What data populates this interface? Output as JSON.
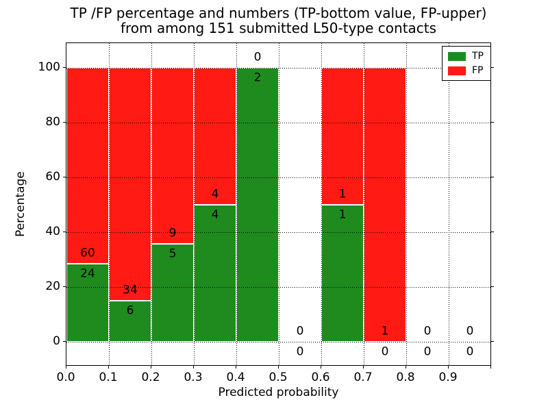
{
  "chart_data": {
    "type": "bar",
    "stacked": true,
    "title_line1": "TP /FP percentage and numbers (TP-bottom value, FP-upper)",
    "title_line2": "from among 151 submitted L50-type contacts",
    "xlabel": "Predicted probability",
    "ylabel": "Percentage",
    "xlim": [
      0.0,
      1.0
    ],
    "ylim": [
      -9,
      109
    ],
    "x_tick_labels": [
      "0.0",
      "0.1",
      "0.2",
      "0.3",
      "0.4",
      "0.5",
      "0.6",
      "0.7",
      "0.8",
      "0.9"
    ],
    "y_ticks": [
      0,
      20,
      40,
      60,
      80,
      100
    ],
    "grid": true,
    "legend_position": "upper right",
    "colors": {
      "tp": "#1f8b1f",
      "fp": "#ff1a14"
    },
    "legend": [
      {
        "key": "tp",
        "label": "TP"
      },
      {
        "key": "fp",
        "label": "FP"
      }
    ],
    "bins": [
      {
        "range": "0.0-0.1",
        "tp": 24,
        "fp": 60
      },
      {
        "range": "0.1-0.2",
        "tp": 6,
        "fp": 34
      },
      {
        "range": "0.2-0.3",
        "tp": 5,
        "fp": 9
      },
      {
        "range": "0.3-0.4",
        "tp": 4,
        "fp": 4
      },
      {
        "range": "0.4-0.5",
        "tp": 2,
        "fp": 0
      },
      {
        "range": "0.5-0.6",
        "tp": 0,
        "fp": 0
      },
      {
        "range": "0.6-0.7",
        "tp": 1,
        "fp": 1
      },
      {
        "range": "0.7-0.8",
        "tp": 0,
        "fp": 1
      },
      {
        "range": "0.8-0.9",
        "tp": 0,
        "fp": 0
      },
      {
        "range": "0.9-1.0",
        "tp": 0,
        "fp": 0
      }
    ]
  }
}
